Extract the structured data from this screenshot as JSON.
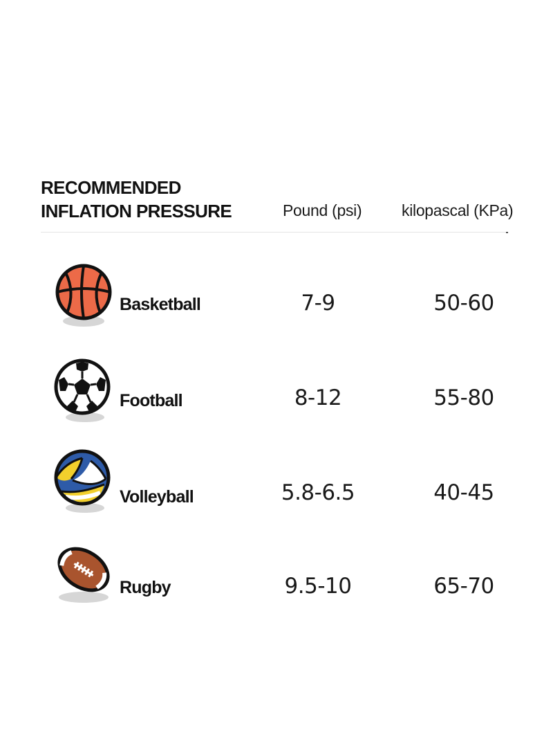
{
  "header": {
    "title_line1": "RECOMMENDED",
    "title_line2": "INFLATION PRESSURE",
    "col_psi": "Pound (psi)",
    "col_kpa": "kilopascal (KPa)"
  },
  "rows": [
    {
      "name": "Basketball",
      "psi": "7-9",
      "kpa": "50-60",
      "icon": "basketball-icon"
    },
    {
      "name": "Football",
      "psi": "8-12",
      "kpa": "55-80",
      "icon": "soccer-ball-icon"
    },
    {
      "name": "Volleyball",
      "psi": "5.8-6.5",
      "kpa": "40-45",
      "icon": "volleyball-icon"
    },
    {
      "name": "Rugby",
      "psi": "9.5-10",
      "kpa": "65-70",
      "icon": "rugby-ball-icon"
    }
  ],
  "colors": {
    "basketball": "#ec6a48",
    "volleyball_blue": "#2e5ba8",
    "volleyball_yellow": "#f2cf2c",
    "rugby": "#a9542e",
    "shadow": "#d6d6d6",
    "outline": "#111111"
  }
}
